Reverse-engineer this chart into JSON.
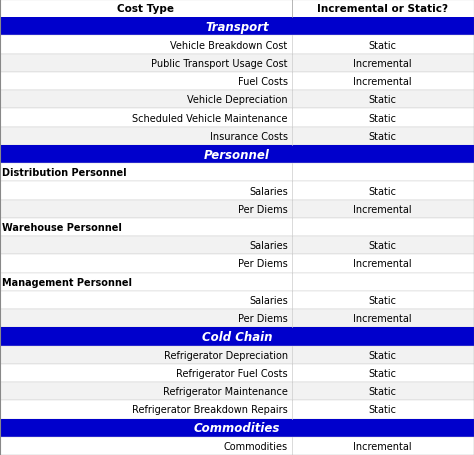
{
  "header": [
    "Cost Type",
    "Incremental or Static?"
  ],
  "sections": [
    {
      "name": "Transport",
      "rows": [
        [
          "Vehicle Breakdown Cost",
          "Static"
        ],
        [
          "Public Transport Usage Cost",
          "Incremental"
        ],
        [
          "Fuel Costs",
          "Incremental"
        ],
        [
          "Vehicle Depreciation",
          "Static"
        ],
        [
          "Scheduled Vehicle Maintenance",
          "Static"
        ],
        [
          "Insurance Costs",
          "Static"
        ]
      ]
    },
    {
      "name": "Personnel",
      "subsections": [
        {
          "name": "Distribution Personnel",
          "rows": [
            [
              "Salaries",
              "Static"
            ],
            [
              "Per Diems",
              "Incremental"
            ]
          ]
        },
        {
          "name": "Warehouse Personnel",
          "rows": [
            [
              "Salaries",
              "Static"
            ],
            [
              "Per Diems",
              "Incremental"
            ]
          ]
        },
        {
          "name": "Management Personnel",
          "rows": [
            [
              "Salaries",
              "Static"
            ],
            [
              "Per Diems",
              "Incremental"
            ]
          ]
        }
      ]
    },
    {
      "name": "Cold Chain",
      "rows": [
        [
          "Refrigerator Depreciation",
          "Static"
        ],
        [
          "Refrigerator Fuel Costs",
          "Static"
        ],
        [
          "Refrigerator Maintenance",
          "Static"
        ],
        [
          "Refrigerator Breakdown Repairs",
          "Static"
        ]
      ]
    },
    {
      "name": "Commodities",
      "rows": [
        [
          "Commodities",
          "Incremental"
        ]
      ]
    }
  ],
  "section_bg_color": "#0000CC",
  "section_text_color": "#FFFFFF",
  "col_split": 0.615,
  "font_size": 7.0,
  "header_font_size": 7.5,
  "section_font_size": 8.5,
  "subsection_font_size": 7.0
}
